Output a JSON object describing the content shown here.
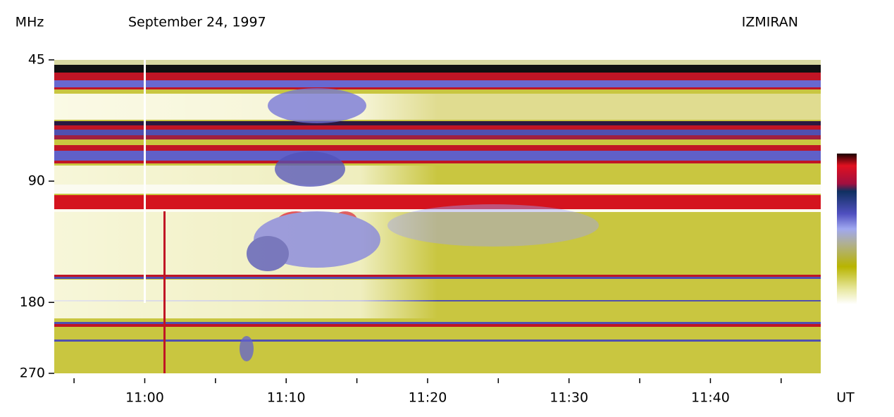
{
  "chart_data": {
    "type": "spectrogram",
    "title": "September 24, 1997",
    "source": "IZMIRAN",
    "y_label": "MHz",
    "x_label": "UT",
    "ylim": [
      45,
      270
    ],
    "yticks": [
      45,
      90,
      180,
      270
    ],
    "log_y": true,
    "y_reversed": true,
    "xlim": [
      653.6,
      707.8
    ],
    "xticks": [
      {
        "value": 660,
        "label": "11:00"
      },
      {
        "value": 670,
        "label": "11:10"
      },
      {
        "value": 680,
        "label": "11:20"
      },
      {
        "value": 690,
        "label": "11:30"
      },
      {
        "value": 700,
        "label": "11:40"
      }
    ],
    "xminorticks": [
      655,
      665,
      675,
      685,
      695,
      705
    ]
  }
}
